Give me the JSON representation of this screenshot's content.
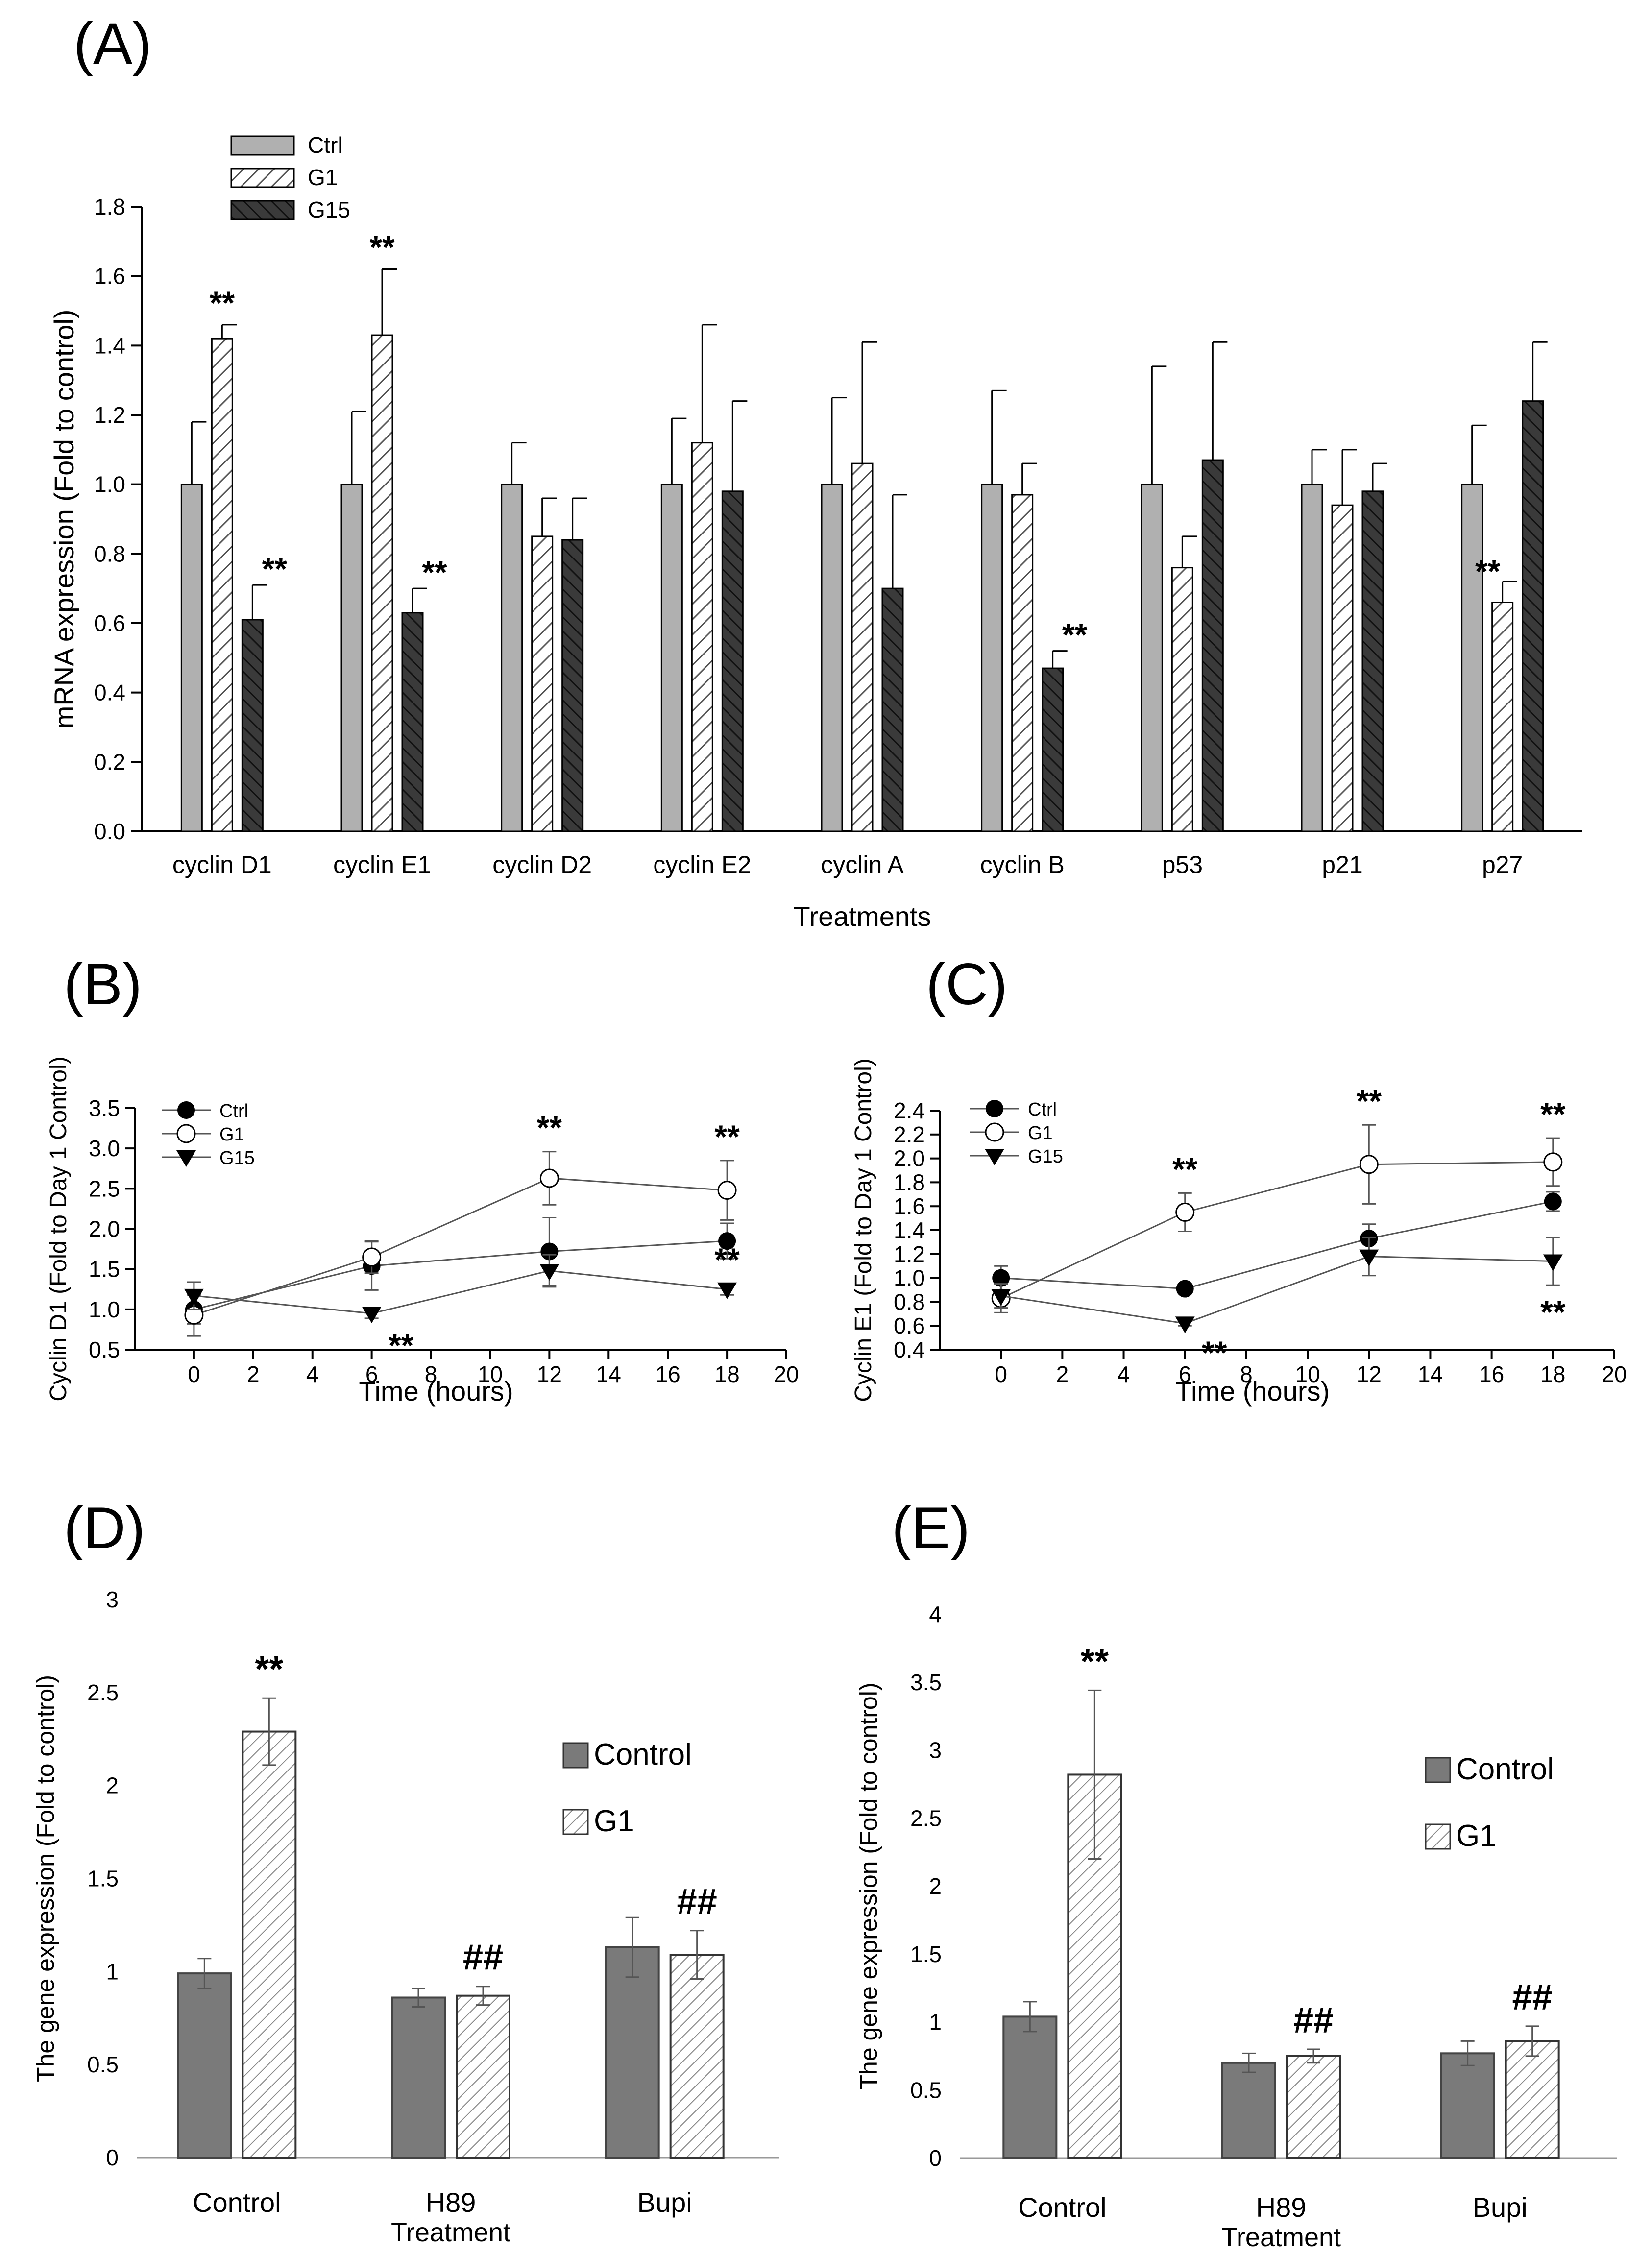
{
  "panel_labels": [
    "(A)",
    "(B)",
    "(C)",
    "(D)",
    "(E)"
  ],
  "colors": {
    "ctrl": "#b0b0b0",
    "g15": "#3a3a3a",
    "dark_gray": "#7a7a7a",
    "gray_text": "#6e6e6e",
    "line": "#000000"
  },
  "chart_data": [
    {
      "panel": "(A)",
      "type": "bar",
      "xlabel": "Treatments",
      "ylabel": "mRNA expression (Fold to control)",
      "ylim": [
        0,
        1.8
      ],
      "yticks": [
        "0.0",
        "0.2",
        "0.4",
        "0.6",
        "0.8",
        "1.0",
        "1.2",
        "1.4",
        "1.6",
        "1.8"
      ],
      "legend_position": "top-left",
      "categories": [
        "cyclin D1",
        "cyclin E1",
        "cyclin D2",
        "cyclin E2",
        "cyclin A",
        "cyclin B",
        "p53",
        "p21",
        "p27"
      ],
      "series": [
        {
          "name": "Ctrl",
          "values": [
            1.0,
            1.0,
            1.0,
            1.0,
            1.0,
            1.0,
            1.0,
            1.0,
            1.0
          ],
          "error": [
            0.18,
            0.21,
            0.12,
            0.19,
            0.25,
            0.27,
            0.34,
            0.1,
            0.17
          ],
          "sig": [
            "",
            "",
            "",
            "",
            "",
            "",
            "",
            "",
            ""
          ]
        },
        {
          "name": "G1",
          "values": [
            1.42,
            1.43,
            0.85,
            1.12,
            1.06,
            0.97,
            0.76,
            0.94,
            0.66
          ],
          "error": [
            0.04,
            0.19,
            0.11,
            0.34,
            0.35,
            0.09,
            0.09,
            0.16,
            0.06
          ],
          "sig": [
            "**",
            "**",
            "",
            "",
            "",
            "",
            "",
            "",
            "**"
          ]
        },
        {
          "name": "G15",
          "values": [
            0.61,
            0.63,
            0.84,
            0.98,
            0.7,
            0.47,
            1.07,
            0.98,
            1.24
          ],
          "error": [
            0.1,
            0.07,
            0.12,
            0.26,
            0.27,
            0.05,
            0.34,
            0.08,
            0.17
          ],
          "sig": [
            "**",
            "**",
            "",
            "",
            "",
            "**",
            "",
            "",
            ""
          ]
        }
      ]
    },
    {
      "panel": "(B)",
      "type": "line",
      "xlabel": "Time (hours)",
      "ylabel": "Cyclin D1 (Fold to  Day 1 Control)",
      "xlim": [
        -2,
        20
      ],
      "ylim": [
        0.5,
        3.5
      ],
      "xticks": [
        "0",
        "2",
        "4",
        "6",
        "8",
        "10",
        "12",
        "14",
        "16",
        "18",
        "20"
      ],
      "yticks": [
        "0.5",
        "1.0",
        "1.5",
        "2.0",
        "2.5",
        "3.0",
        "3.5"
      ],
      "legend_position": "top-left",
      "x": [
        0,
        6,
        12,
        18
      ],
      "series": [
        {
          "name": "Ctrl",
          "marker": "filled-circle",
          "values": [
            1.0,
            1.54,
            1.72,
            1.85
          ],
          "error": [
            0.18,
            0.3,
            0.42,
            0.22
          ],
          "sig": [
            "",
            "",
            "",
            ""
          ]
        },
        {
          "name": "G1",
          "marker": "open-circle",
          "values": [
            0.93,
            1.65,
            2.63,
            2.48
          ],
          "error": [
            0.26,
            0.2,
            0.33,
            0.37
          ],
          "sig": [
            "",
            "",
            "**",
            "**"
          ]
        },
        {
          "name": "G15",
          "marker": "filled-triangle-down",
          "values": [
            1.17,
            0.95,
            1.48,
            1.25
          ],
          "error": [
            0.17,
            0.06,
            0.2,
            0.07
          ],
          "sig": [
            "",
            "**",
            "",
            "**"
          ]
        }
      ]
    },
    {
      "panel": "(C)",
      "type": "line",
      "xlabel": "Time (hours)",
      "ylabel": "Cyclin E1 (Fold to  Day 1 Control)",
      "xlim": [
        -2,
        20
      ],
      "ylim": [
        0.4,
        2.4
      ],
      "xticks": [
        "0",
        "2",
        "4",
        "6",
        "8",
        "10",
        "12",
        "14",
        "16",
        "18",
        "20"
      ],
      "yticks": [
        "0.4",
        "0.6",
        "0.8",
        "1.0",
        "1.2",
        "1.4",
        "1.6",
        "1.8",
        "2.0",
        "2.2",
        "2.4"
      ],
      "legend_position": "top-left",
      "x": [
        0,
        6,
        12,
        18
      ],
      "series": [
        {
          "name": "Ctrl",
          "marker": "filled-circle",
          "values": [
            1.0,
            0.91,
            1.33,
            1.64
          ],
          "error": [
            0.1,
            0.02,
            0.12,
            0.08
          ],
          "sig": [
            "",
            "",
            "",
            ""
          ]
        },
        {
          "name": "G1",
          "marker": "open-circle",
          "values": [
            0.83,
            1.55,
            1.95,
            1.97
          ],
          "error": [
            0.12,
            0.16,
            0.33,
            0.2
          ],
          "sig": [
            "",
            "**",
            "**",
            "**"
          ]
        },
        {
          "name": "G15",
          "marker": "filled-triangle-down",
          "values": [
            0.85,
            0.62,
            1.18,
            1.14
          ],
          "error": [
            0.1,
            0.02,
            0.16,
            0.2
          ],
          "sig": [
            "",
            "**",
            "",
            "**"
          ]
        }
      ]
    },
    {
      "panel": "(D)",
      "type": "bar",
      "xlabel": "Treatment",
      "ylabel": "The gene expression (Fold to control)",
      "ylim": [
        0,
        3
      ],
      "yticks": [
        "0",
        "0.5",
        "1",
        "1.5",
        "2",
        "2.5",
        "3"
      ],
      "legend_position": "top-right",
      "categories": [
        "Control",
        "H89",
        "Bupi"
      ],
      "series": [
        {
          "name": "Control",
          "values": [
            0.99,
            0.86,
            1.13
          ],
          "error": [
            0.08,
            0.05,
            0.16
          ],
          "sig": [
            "",
            "",
            ""
          ]
        },
        {
          "name": "G1",
          "values": [
            2.29,
            0.87,
            1.09
          ],
          "error": [
            0.18,
            0.05,
            0.13
          ],
          "sig": [
            "**",
            "##",
            "##"
          ]
        }
      ]
    },
    {
      "panel": "(E)",
      "type": "bar",
      "xlabel": "Treatment",
      "ylabel": "The gene expression (Fold to control)",
      "ylim": [
        0,
        4
      ],
      "yticks": [
        "0",
        "0.5",
        "1",
        "1.5",
        "2",
        "2.5",
        "3",
        "3.5",
        "4"
      ],
      "legend_position": "top-right",
      "categories": [
        "Control",
        "H89",
        "Bupi"
      ],
      "series": [
        {
          "name": "Control",
          "values": [
            1.04,
            0.7,
            0.77
          ],
          "error": [
            0.11,
            0.07,
            0.09
          ],
          "sig": [
            "",
            "",
            ""
          ]
        },
        {
          "name": "G1",
          "values": [
            2.82,
            0.75,
            0.86
          ],
          "error": [
            0.62,
            0.05,
            0.11
          ],
          "sig": [
            "**",
            "##",
            "##"
          ]
        }
      ]
    }
  ]
}
